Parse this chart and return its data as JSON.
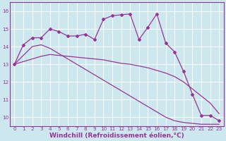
{
  "background_color": "#cce8ee",
  "line_color": "#993399",
  "grid_color": "#aaddcc",
  "xlabel": "Windchill (Refroidissement éolien,°C)",
  "xlabel_fontsize": 6.5,
  "yticks": [
    10,
    11,
    12,
    13,
    14,
    15,
    16
  ],
  "xticks": [
    0,
    1,
    2,
    3,
    4,
    5,
    6,
    7,
    8,
    9,
    10,
    11,
    12,
    13,
    14,
    15,
    16,
    17,
    18,
    19,
    20,
    21,
    22,
    23
  ],
  "xlim": [
    -0.5,
    23.5
  ],
  "ylim": [
    9.5,
    16.5
  ],
  "line1_x": [
    0,
    1,
    2,
    3,
    4,
    5,
    6,
    7,
    8,
    9,
    10,
    11,
    12,
    13,
    14,
    15,
    16,
    17,
    18,
    19,
    20,
    21,
    22,
    23
  ],
  "line1_y": [
    13.0,
    14.1,
    14.5,
    14.5,
    15.0,
    14.85,
    14.6,
    14.6,
    14.7,
    14.4,
    15.55,
    15.75,
    15.8,
    15.85,
    14.4,
    15.1,
    15.85,
    14.2,
    13.7,
    12.6,
    11.3,
    10.1,
    10.1,
    9.8
  ],
  "line2_x": [
    0,
    1,
    2,
    3,
    4,
    5,
    6,
    7,
    8,
    9,
    10,
    11,
    12,
    13,
    14,
    15,
    16,
    17,
    18,
    19,
    20,
    21,
    22,
    23
  ],
  "line2_y": [
    13.0,
    13.15,
    13.3,
    13.45,
    13.55,
    13.5,
    13.45,
    13.4,
    13.35,
    13.3,
    13.25,
    13.15,
    13.05,
    13.0,
    12.9,
    12.8,
    12.65,
    12.5,
    12.3,
    12.0,
    11.6,
    11.2,
    10.8,
    10.2
  ],
  "line3_x": [
    0,
    1,
    2,
    3,
    4,
    5,
    6,
    7,
    8,
    9,
    10,
    11,
    12,
    13,
    14,
    15,
    16,
    17,
    18,
    19,
    20,
    21,
    22,
    23
  ],
  "line3_y": [
    13.0,
    13.5,
    14.0,
    14.1,
    13.9,
    13.6,
    13.3,
    13.0,
    12.7,
    12.4,
    12.1,
    11.8,
    11.5,
    11.2,
    10.9,
    10.6,
    10.3,
    10.0,
    9.8,
    9.7,
    9.65,
    9.6,
    9.6,
    9.6
  ],
  "marker": "D",
  "markersize": 2,
  "linewidth": 0.9
}
